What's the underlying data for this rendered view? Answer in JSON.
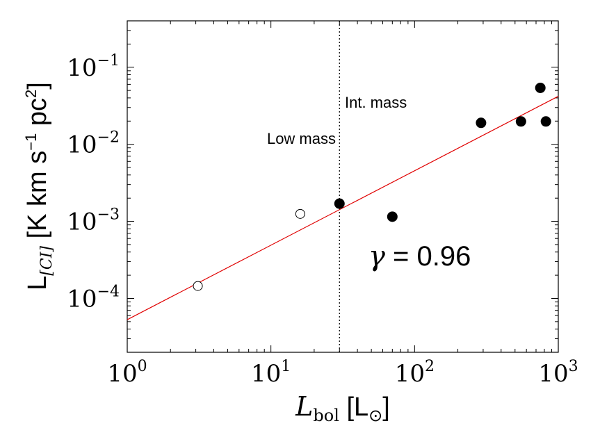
{
  "chart_data": {
    "type": "scatter",
    "xscale": "log",
    "yscale": "log",
    "xlim": [
      1,
      1000
    ],
    "ylim": [
      2e-05,
      0.4
    ],
    "grid": false,
    "xlabel": {
      "math": "L",
      "sub": "bol",
      "unit": " [L",
      "unit_sub": "⊙",
      "close": "]"
    },
    "ylabel": {
      "main": "L",
      "sub": "[CI]",
      "rest": " [K km s",
      "exp1": "−1",
      "mid": " pc",
      "exp2": "2",
      "close": "]"
    },
    "x_ticks": [
      {
        "value": 1,
        "base": "10",
        "exp": "0"
      },
      {
        "value": 10,
        "base": "10",
        "exp": "1"
      },
      {
        "value": 100,
        "base": "10",
        "exp": "2"
      },
      {
        "value": 1000,
        "base": "10",
        "exp": "3"
      }
    ],
    "y_ticks": [
      {
        "value": 0.0001,
        "base": "10",
        "exp": "−4"
      },
      {
        "value": 0.001,
        "base": "10",
        "exp": "−3"
      },
      {
        "value": 0.01,
        "base": "10",
        "exp": "−2"
      },
      {
        "value": 0.1,
        "base": "10",
        "exp": "−1"
      }
    ],
    "series": [
      {
        "marker": "open-circle",
        "points": [
          {
            "x": 3.1,
            "y": 0.000145
          },
          {
            "x": 16,
            "y": 0.00125
          }
        ]
      },
      {
        "marker": "filled-circle",
        "points": [
          {
            "x": 30,
            "y": 0.0017
          },
          {
            "x": 70,
            "y": 0.00115
          },
          {
            "x": 290,
            "y": 0.019
          },
          {
            "x": 550,
            "y": 0.0198
          },
          {
            "x": 750,
            "y": 0.054
          },
          {
            "x": 820,
            "y": 0.0198
          }
        ]
      }
    ],
    "fit_line": {
      "color": "#e00000",
      "x": [
        1,
        1000
      ],
      "y": [
        5.3e-05,
        0.042
      ]
    },
    "divider": {
      "x": 30,
      "style": "dotted"
    },
    "annotations": {
      "low_mass": "Low mass",
      "int_mass": "Int. mass",
      "gamma_symbol": "γ",
      "gamma_text": " = 0.96"
    }
  }
}
